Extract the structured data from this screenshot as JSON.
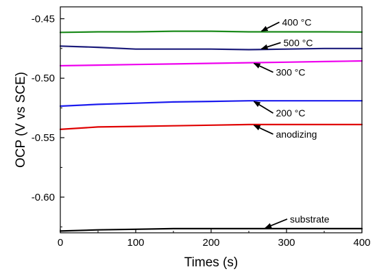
{
  "chart_data": {
    "type": "line",
    "title": "",
    "xlabel": "Times (s)",
    "ylabel": "OCP (V vs SCE)",
    "xlim": [
      0,
      400
    ],
    "ylim": [
      -0.63,
      -0.44
    ],
    "x_ticks": [
      0,
      100,
      200,
      300,
      400
    ],
    "x_tick_labels": [
      "0",
      "100",
      "200",
      "300",
      "400"
    ],
    "y_ticks": [
      -0.45,
      -0.5,
      -0.55,
      -0.6
    ],
    "y_tick_labels": [
      "-0.45",
      "-0.50",
      "-0.55",
      "-0.60"
    ],
    "grid": false,
    "legend": "none",
    "series": [
      {
        "label": "400 °C",
        "color": "#1a8a1a",
        "x": [
          0,
          50,
          100,
          150,
          200,
          250,
          300,
          350,
          400
        ],
        "y": [
          -0.4615,
          -0.461,
          -0.461,
          -0.4605,
          -0.4605,
          -0.461,
          -0.461,
          -0.461,
          -0.4612
        ]
      },
      {
        "label": "500 °C",
        "color": "#1a1a7a",
        "x": [
          0,
          50,
          100,
          150,
          200,
          250,
          300,
          350,
          400
        ],
        "y": [
          -0.473,
          -0.474,
          -0.4755,
          -0.4755,
          -0.4755,
          -0.476,
          -0.4755,
          -0.475,
          -0.475
        ]
      },
      {
        "label": "300 °C",
        "color": "#ee00ee",
        "x": [
          0,
          50,
          100,
          150,
          200,
          250,
          300,
          350,
          400
        ],
        "y": [
          -0.4895,
          -0.489,
          -0.4885,
          -0.488,
          -0.4875,
          -0.487,
          -0.4865,
          -0.486,
          -0.4855
        ]
      },
      {
        "label": "200 °C",
        "color": "#1a1aee",
        "x": [
          0,
          50,
          100,
          150,
          200,
          250,
          300,
          350,
          400
        ],
        "y": [
          -0.5235,
          -0.522,
          -0.521,
          -0.52,
          -0.5195,
          -0.519,
          -0.519,
          -0.519,
          -0.519
        ]
      },
      {
        "label": "anodizing",
        "color": "#e00000",
        "x": [
          0,
          50,
          100,
          150,
          200,
          250,
          300,
          350,
          400
        ],
        "y": [
          -0.543,
          -0.541,
          -0.5405,
          -0.54,
          -0.5395,
          -0.539,
          -0.539,
          -0.539,
          -0.539
        ]
      },
      {
        "label": "substrate",
        "color": "#000000",
        "x": [
          0,
          50,
          100,
          150,
          200,
          250,
          300,
          350,
          400
        ],
        "y": [
          -0.6285,
          -0.6275,
          -0.627,
          -0.6265,
          -0.6265,
          -0.6265,
          -0.6265,
          -0.6265,
          -0.6265
        ]
      }
    ],
    "annotations": [
      {
        "text": "400 °C",
        "series": "400 °C",
        "arrow_at_x": 265
      },
      {
        "text": "500 °C",
        "series": "500 °C",
        "arrow_at_x": 265
      },
      {
        "text": "300 °C",
        "series": "300 °C",
        "arrow_at_x": 255
      },
      {
        "text": "200 °C",
        "series": "200 °C",
        "arrow_at_x": 255
      },
      {
        "text": "anodizing",
        "series": "anodizing",
        "arrow_at_x": 255
      },
      {
        "text": "substrate",
        "series": "substrate",
        "arrow_at_x": 270
      }
    ]
  }
}
